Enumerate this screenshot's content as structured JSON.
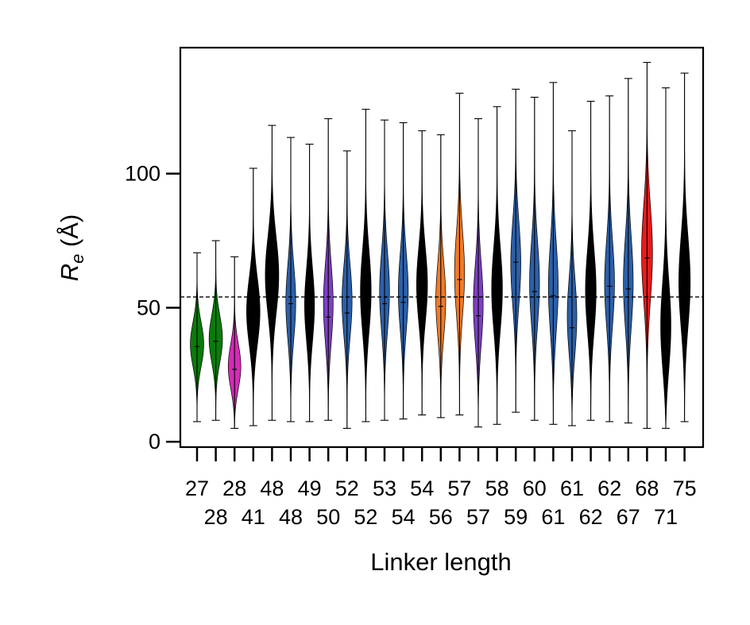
{
  "chart_data": {
    "type": "violin",
    "xlabel": "Linker length",
    "ylabel": "R",
    "ylabel_sub": "e",
    "ylabel_unit": " (Å)",
    "ylim": [
      -2,
      147
    ],
    "yticks": [
      0,
      50,
      100
    ],
    "reference_line_y": 54,
    "grid": false,
    "violins": [
      {
        "label": "27",
        "row": 1,
        "color": "#0b7a0b",
        "min": 7.5,
        "max": 70.5,
        "mean": 35.5,
        "mode": 36,
        "peak": 40,
        "width": 0.8
      },
      {
        "label": "28",
        "row": 2,
        "color": "#0b7a0b",
        "min": 8,
        "max": 75,
        "mean": 37.5,
        "mode": 38,
        "peak": 40,
        "width": 0.8
      },
      {
        "label": "28",
        "row": 1,
        "color": "#d42bb7",
        "min": 5,
        "max": 69,
        "mean": 27,
        "mode": 27,
        "peak": 30,
        "width": 0.8
      },
      {
        "label": "41",
        "row": 2,
        "color": "#000000",
        "min": 6,
        "max": 102,
        "mean": 49,
        "mode": 48,
        "peak": 75,
        "width": 0.8
      },
      {
        "label": "48",
        "row": 1,
        "color": "#000000",
        "min": 8,
        "max": 118,
        "mean": 62,
        "mode": 62,
        "peak": 87,
        "width": 0.8
      },
      {
        "label": "48",
        "row": 2,
        "color": "#2c5fa8",
        "min": 7.5,
        "max": 113.5,
        "mean": 51.5,
        "mode": 51,
        "peak": 85,
        "width": 0.6
      },
      {
        "label": "49",
        "row": 1,
        "color": "#000000",
        "min": 7.5,
        "max": 111,
        "mean": 53,
        "mode": 50,
        "peak": 80,
        "width": 0.6
      },
      {
        "label": "50",
        "row": 2,
        "color": "#7d3fc2",
        "min": 8,
        "max": 120.5,
        "mean": 46.5,
        "mode": 50,
        "peak": 78,
        "width": 0.6
      },
      {
        "label": "52",
        "row": 1,
        "color": "#2c5fa8",
        "min": 5,
        "max": 108.5,
        "mean": 48,
        "mode": 52,
        "peak": 78,
        "width": 0.6
      },
      {
        "label": "52",
        "row": 2,
        "color": "#000000",
        "min": 7.5,
        "max": 124,
        "mean": 54,
        "mode": 55,
        "peak": 88,
        "width": 0.65
      },
      {
        "label": "53",
        "row": 1,
        "color": "#2c5fa8",
        "min": 8,
        "max": 120,
        "mean": 51.5,
        "mode": 55,
        "peak": 85,
        "width": 0.6
      },
      {
        "label": "54",
        "row": 2,
        "color": "#2c5fa8",
        "min": 8.5,
        "max": 119,
        "mean": 52,
        "mode": 55,
        "peak": 86,
        "width": 0.6
      },
      {
        "label": "54",
        "row": 1,
        "color": "#000000",
        "min": 10,
        "max": 116,
        "mean": 55,
        "mode": 58,
        "peak": 88,
        "width": 0.65
      },
      {
        "label": "56",
        "row": 2,
        "color": "#f07a28",
        "min": 9,
        "max": 114.5,
        "mean": 50.5,
        "mode": 52,
        "peak": 90,
        "width": 0.6
      },
      {
        "label": "57",
        "row": 1,
        "color": "#f07a28",
        "min": 10,
        "max": 130,
        "mean": 60.5,
        "mode": 62,
        "peak": 102,
        "width": 0.6
      },
      {
        "label": "57",
        "row": 2,
        "color": "#7d3fc2",
        "min": 5.5,
        "max": 120.5,
        "mean": 47,
        "mode": 50,
        "peak": 80,
        "width": 0.6
      },
      {
        "label": "58",
        "row": 1,
        "color": "#000000",
        "min": 6.5,
        "max": 125,
        "mean": 55,
        "mode": 56,
        "peak": 90,
        "width": 0.65
      },
      {
        "label": "59",
        "row": 2,
        "color": "#2c5fa8",
        "min": 11,
        "max": 131.5,
        "mean": 67,
        "mode": 66,
        "peak": 102,
        "width": 0.6
      },
      {
        "label": "60",
        "row": 1,
        "color": "#2c5fa8",
        "min": 8,
        "max": 128.5,
        "mean": 56,
        "mode": 58,
        "peak": 95,
        "width": 0.6
      },
      {
        "label": "61",
        "row": 2,
        "color": "#2c5fa8",
        "min": 6.5,
        "max": 134,
        "mean": 54.5,
        "mode": 56,
        "peak": 95,
        "width": 0.6
      },
      {
        "label": "61",
        "row": 1,
        "color": "#2c5fa8",
        "min": 6,
        "max": 116,
        "mean": 42.5,
        "mode": 45,
        "peak": 75,
        "width": 0.6
      },
      {
        "label": "62",
        "row": 2,
        "color": "#000000",
        "min": 8,
        "max": 127,
        "mean": 55,
        "mode": 55,
        "peak": 90,
        "width": 0.65
      },
      {
        "label": "62",
        "row": 1,
        "color": "#2c5fa8",
        "min": 7.5,
        "max": 129,
        "mean": 58,
        "mode": 58,
        "peak": 98,
        "width": 0.6
      },
      {
        "label": "67",
        "row": 2,
        "color": "#2c5fa8",
        "min": 7,
        "max": 135.5,
        "mean": 57,
        "mode": 58,
        "peak": 98,
        "width": 0.6
      },
      {
        "label": "68",
        "row": 1,
        "color": "#e51c1c",
        "min": 5,
        "max": 141.5,
        "mean": 68.5,
        "mode": 70,
        "peak": 108,
        "width": 0.65
      },
      {
        "label": "71",
        "row": 2,
        "color": "#000000",
        "min": 5,
        "max": 132,
        "mean": 40,
        "mode": 40,
        "peak": 85,
        "width": 0.7
      },
      {
        "label": "75",
        "row": 1,
        "color": "#000000",
        "min": 7.5,
        "max": 137.5,
        "mean": 55,
        "mode": 58,
        "peak": 95,
        "width": 0.7
      }
    ]
  }
}
